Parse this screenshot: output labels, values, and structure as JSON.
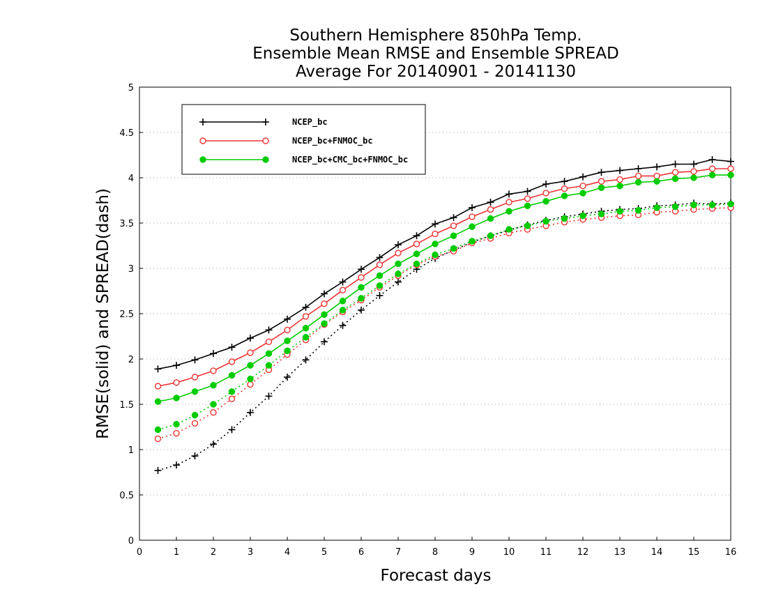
{
  "chart_data": {
    "type": "line",
    "title_lines": [
      "Southern Hemisphere 850hPa Temp.",
      "Ensemble Mean RMSE and Ensemble SPREAD",
      "Average For 20140901 - 20141130"
    ],
    "xlabel": "Forecast days",
    "ylabel": "RMSE(solid) and SPREAD(dash)",
    "xlim": [
      0,
      16
    ],
    "ylim": [
      0,
      5
    ],
    "xticks": [
      0,
      1,
      2,
      3,
      4,
      5,
      6,
      7,
      8,
      9,
      10,
      11,
      12,
      13,
      14,
      15,
      16
    ],
    "yticks": [
      0,
      0.5,
      1,
      1.5,
      2,
      2.5,
      3,
      3.5,
      4,
      4.5,
      5
    ],
    "ytick_labels": [
      "0",
      "0.5",
      "1",
      "1.5",
      "2",
      "2.5",
      "3",
      "3.5",
      "4",
      "4.5",
      "5"
    ],
    "grid": true,
    "legend_position": "top-left",
    "x": [
      0.5,
      1,
      1.5,
      2,
      2.5,
      3,
      3.5,
      4,
      4.5,
      5,
      5.5,
      6,
      6.5,
      7,
      7.5,
      8,
      8.5,
      9,
      9.5,
      10,
      10.5,
      11,
      11.5,
      12,
      12.5,
      13,
      13.5,
      14,
      14.5,
      15,
      15.5,
      16
    ],
    "series": [
      {
        "name": "NCEP_bc",
        "color": "#000000",
        "marker": "plus",
        "rmse": [
          1.89,
          1.93,
          1.99,
          2.06,
          2.13,
          2.23,
          2.32,
          2.44,
          2.57,
          2.72,
          2.85,
          2.99,
          3.12,
          3.26,
          3.36,
          3.49,
          3.56,
          3.67,
          3.73,
          3.82,
          3.85,
          3.93,
          3.96,
          4.01,
          4.06,
          4.08,
          4.1,
          4.12,
          4.15,
          4.15,
          4.2,
          4.18
        ],
        "spread": [
          0.77,
          0.83,
          0.93,
          1.06,
          1.22,
          1.41,
          1.59,
          1.8,
          1.99,
          2.19,
          2.37,
          2.54,
          2.7,
          2.85,
          2.99,
          3.11,
          3.2,
          3.29,
          3.36,
          3.42,
          3.48,
          3.53,
          3.57,
          3.6,
          3.63,
          3.65,
          3.66,
          3.69,
          3.7,
          3.72,
          3.71,
          3.72
        ]
      },
      {
        "name": "NCEP_bc+FNMOC_bc",
        "color": "#ee3333",
        "marker": "open-circle",
        "rmse": [
          1.7,
          1.74,
          1.8,
          1.87,
          1.97,
          2.07,
          2.19,
          2.32,
          2.47,
          2.61,
          2.76,
          2.9,
          3.04,
          3.17,
          3.27,
          3.38,
          3.47,
          3.57,
          3.65,
          3.73,
          3.77,
          3.83,
          3.88,
          3.91,
          3.96,
          3.98,
          4.02,
          4.02,
          4.06,
          4.07,
          4.1,
          4.1
        ],
        "spread": [
          1.12,
          1.18,
          1.29,
          1.41,
          1.56,
          1.72,
          1.88,
          2.05,
          2.21,
          2.38,
          2.52,
          2.65,
          2.79,
          2.92,
          3.04,
          3.13,
          3.19,
          3.28,
          3.33,
          3.39,
          3.43,
          3.47,
          3.51,
          3.54,
          3.56,
          3.58,
          3.59,
          3.62,
          3.63,
          3.65,
          3.66,
          3.67
        ]
      },
      {
        "name": "NCEP_bc+CMC_bc+FNMOC_bc",
        "color": "#00cc00",
        "marker": "filled-circle",
        "rmse": [
          1.53,
          1.57,
          1.64,
          1.71,
          1.82,
          1.93,
          2.06,
          2.2,
          2.34,
          2.49,
          2.64,
          2.79,
          2.92,
          3.05,
          3.16,
          3.27,
          3.36,
          3.46,
          3.55,
          3.63,
          3.69,
          3.74,
          3.8,
          3.83,
          3.89,
          3.91,
          3.95,
          3.96,
          3.99,
          4.0,
          4.03,
          4.03
        ],
        "spread": [
          1.22,
          1.28,
          1.38,
          1.5,
          1.64,
          1.78,
          1.93,
          2.09,
          2.24,
          2.39,
          2.54,
          2.67,
          2.81,
          2.94,
          3.05,
          3.15,
          3.22,
          3.3,
          3.36,
          3.43,
          3.47,
          3.52,
          3.55,
          3.58,
          3.6,
          3.63,
          3.64,
          3.67,
          3.68,
          3.7,
          3.7,
          3.71
        ]
      }
    ]
  }
}
